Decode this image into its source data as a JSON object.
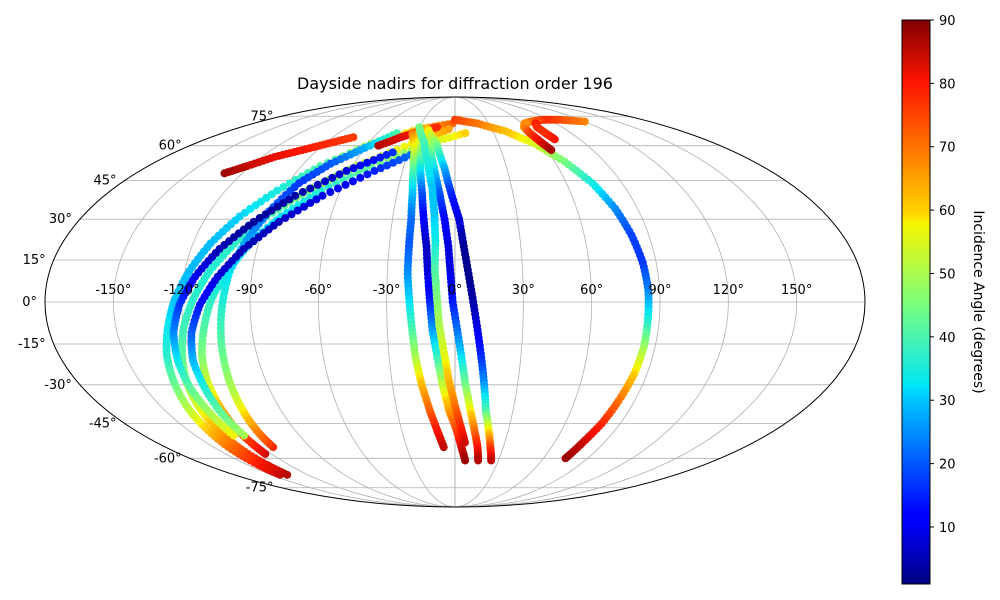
{
  "chart_data": {
    "type": "scatter",
    "title": "Dayside nadirs for diffraction order 196",
    "projection": "mollweide",
    "grid": true,
    "longitude_ticks": [
      "-150°",
      "-120°",
      "-90°",
      "-60°",
      "-30°",
      "0°",
      "30°",
      "60°",
      "90°",
      "120°",
      "150°"
    ],
    "longitude_values": [
      -150,
      -120,
      -90,
      -60,
      -30,
      0,
      30,
      60,
      90,
      120,
      150
    ],
    "latitude_ticks": [
      "75°",
      "60°",
      "45°",
      "30°",
      "15°",
      "0°",
      "-15°",
      "-30°",
      "-45°",
      "-60°",
      "-75°"
    ],
    "latitude_values": [
      75,
      60,
      45,
      30,
      15,
      0,
      -15,
      -30,
      -45,
      -60,
      -75
    ],
    "colorbar": {
      "label": "Incidence Angle (degrees)",
      "colormap": "jet",
      "range": [
        1,
        90
      ],
      "ticks": [
        "10",
        "20",
        "30",
        "40",
        "50",
        "60",
        "70",
        "80",
        "90"
      ],
      "tick_values": [
        10,
        20,
        30,
        40,
        50,
        60,
        70,
        80,
        90
      ]
    },
    "series": [
      {
        "points": [
          [
            -143,
            -68,
            85
          ],
          [
            -142,
            -63,
            80
          ],
          [
            -141,
            -56,
            72
          ],
          [
            -139,
            -48,
            62
          ],
          [
            -137,
            -39,
            52
          ],
          [
            -134,
            -29,
            43
          ],
          [
            -131,
            -19,
            37
          ],
          [
            -127,
            -9,
            33
          ],
          [
            -123,
            1,
            30
          ],
          [
            -118,
            11,
            29
          ],
          [
            -112,
            21,
            29
          ],
          [
            -104,
            31,
            31
          ],
          [
            -93,
            41,
            35
          ],
          [
            -79,
            51,
            40
          ],
          [
            -58,
            61,
            50
          ],
          [
            -30,
            68,
            62
          ],
          [
            -2,
            71,
            72
          ]
        ]
      },
      {
        "points": [
          [
            -137,
            -68,
            86
          ],
          [
            -136,
            -63,
            82
          ],
          [
            -135,
            -56,
            74
          ],
          [
            -133,
            -48,
            65
          ],
          [
            -131,
            -39,
            56
          ],
          [
            -128,
            -29,
            48
          ],
          [
            -124,
            -19,
            42
          ],
          [
            -120,
            -9,
            39
          ],
          [
            -115,
            1,
            37
          ],
          [
            -109,
            11,
            36
          ],
          [
            -101,
            21,
            37
          ],
          [
            -91,
            31,
            40
          ],
          [
            -77,
            41,
            45
          ],
          [
            -58,
            51,
            51
          ],
          [
            -30,
            61,
            58
          ],
          [
            -5,
            68,
            65
          ]
        ]
      },
      {
        "points": [
          [
            -124,
            -58,
            84
          ],
          [
            -123,
            -53,
            78
          ],
          [
            -122,
            -46,
            71
          ],
          [
            -120,
            -38,
            62
          ],
          [
            -118,
            -29,
            54
          ],
          [
            -115,
            -19,
            46
          ],
          [
            -111,
            -9,
            41
          ],
          [
            -107,
            1,
            37
          ],
          [
            -101,
            11,
            33
          ],
          [
            -94,
            21,
            31
          ],
          [
            -84,
            31,
            32
          ],
          [
            -70,
            41,
            36
          ],
          [
            -49,
            51,
            43
          ],
          [
            -20,
            61,
            52
          ],
          [
            8,
            66,
            60
          ]
        ]
      },
      {
        "points": [
          [
            -113,
            -55,
            78
          ],
          [
            -112,
            -49,
            70
          ],
          [
            -110,
            -41,
            60
          ],
          [
            -108,
            -32,
            51
          ],
          [
            -106,
            -22,
            45
          ],
          [
            -104,
            -11,
            40
          ],
          [
            -102,
            0,
            36
          ],
          [
            -100,
            11,
            32
          ],
          [
            -96,
            22,
            27
          ],
          [
            -91,
            33,
            21
          ],
          [
            -84,
            44,
            17
          ],
          [
            -74,
            52,
            20
          ],
          [
            -60,
            59,
            28
          ],
          [
            -45,
            66,
            40
          ]
        ]
      },
      {
        "points": [
          [
            -128,
            -50,
            58
          ],
          [
            -128,
            -41,
            50
          ],
          [
            -128,
            -31,
            42
          ],
          [
            -127,
            -21,
            34
          ],
          [
            -125,
            -11,
            25
          ],
          [
            -121,
            -1,
            17
          ],
          [
            -115,
            9,
            10
          ],
          [
            -107,
            19,
            5
          ],
          [
            -96,
            29,
            3
          ],
          [
            -82,
            39,
            4
          ],
          [
            -62,
            49,
            8
          ],
          [
            -40,
            57,
            16
          ]
        ]
      },
      {
        "points": [
          [
            -122,
            -50,
            50
          ],
          [
            -122,
            -41,
            43
          ],
          [
            -121,
            -31,
            36
          ],
          [
            -120,
            -21,
            29
          ],
          [
            -117,
            -11,
            21
          ],
          [
            -112,
            -1,
            14
          ],
          [
            -105,
            9,
            8
          ],
          [
            -96,
            19,
            5
          ],
          [
            -84,
            29,
            6
          ],
          [
            -68,
            39,
            9
          ],
          [
            -46,
            49,
            15
          ],
          [
            -25,
            57,
            23
          ]
        ]
      },
      {
        "points": [
          [
            -52,
            60,
            86
          ],
          [
            -40,
            64,
            83
          ],
          [
            -28,
            67,
            80
          ],
          [
            -15,
            69,
            78
          ]
        ]
      },
      {
        "points": [
          [
            -130,
            48,
            88
          ],
          [
            -122,
            51,
            85
          ],
          [
            -112,
            55,
            82
          ],
          [
            -100,
            58,
            80
          ],
          [
            -88,
            61,
            78
          ],
          [
            -75,
            64,
            76
          ]
        ]
      },
      {
        "points": [
          [
            -33,
            66,
            70
          ],
          [
            -27,
            60,
            58
          ],
          [
            -24,
            50,
            42
          ],
          [
            -22,
            40,
            30
          ],
          [
            -21,
            30,
            22
          ],
          [
            -21,
            20,
            20
          ],
          [
            -21,
            10,
            25
          ],
          [
            -20,
            0,
            32
          ],
          [
            -19,
            -10,
            40
          ],
          [
            -18,
            -20,
            50
          ],
          [
            -16,
            -30,
            62
          ],
          [
            -13,
            -40,
            72
          ],
          [
            -10,
            -48,
            80
          ],
          [
            -7,
            -55,
            85
          ]
        ]
      },
      {
        "points": [
          [
            -29,
            66,
            68
          ],
          [
            -23,
            60,
            52
          ],
          [
            -20,
            50,
            34
          ],
          [
            -17,
            40,
            20
          ],
          [
            -15,
            30,
            11
          ],
          [
            -13,
            20,
            6
          ],
          [
            -12,
            10,
            8
          ],
          [
            -11,
            0,
            15
          ],
          [
            -10,
            -10,
            26
          ],
          [
            -8,
            -20,
            38
          ],
          [
            -6,
            -30,
            52
          ],
          [
            -3,
            -40,
            65
          ],
          [
            1,
            -48,
            75
          ],
          [
            4,
            -55,
            83
          ],
          [
            7,
            -61,
            88
          ]
        ]
      },
      {
        "points": [
          [
            -26,
            68,
            65
          ],
          [
            -17,
            60,
            48
          ],
          [
            -12,
            50,
            32
          ],
          [
            -8,
            40,
            20
          ],
          [
            -5,
            30,
            12
          ],
          [
            -3,
            20,
            8
          ],
          [
            -2,
            10,
            9
          ],
          [
            -1,
            0,
            14
          ],
          [
            1,
            -10,
            22
          ],
          [
            3,
            -20,
            32
          ],
          [
            5,
            -30,
            44
          ],
          [
            8,
            -40,
            58
          ],
          [
            11,
            -48,
            70
          ],
          [
            14,
            -55,
            80
          ],
          [
            16,
            -61,
            86
          ]
        ]
      },
      {
        "points": [
          [
            -22,
            68,
            60
          ],
          [
            -12,
            60,
            44
          ],
          [
            -6,
            50,
            28
          ],
          [
            -2,
            40,
            16
          ],
          [
            2,
            30,
            8
          ],
          [
            4,
            20,
            3
          ],
          [
            6,
            10,
            2
          ],
          [
            8,
            0,
            4
          ],
          [
            10,
            -10,
            9
          ],
          [
            12,
            -20,
            16
          ],
          [
            14,
            -30,
            26
          ],
          [
            16,
            -40,
            40
          ],
          [
            19,
            -48,
            58
          ],
          [
            22,
            -55,
            75
          ],
          [
            25,
            -61,
            85
          ]
        ]
      },
      {
        "points": [
          [
            -30,
            69,
            45
          ],
          [
            -22,
            62,
            40
          ],
          [
            -16,
            52,
            35
          ],
          [
            -12,
            42,
            30
          ],
          [
            -10,
            32,
            30
          ],
          [
            -9,
            22,
            34
          ],
          [
            -9,
            12,
            40
          ],
          [
            -8,
            2,
            45
          ],
          [
            -7,
            -8,
            50
          ],
          [
            -5,
            -18,
            55
          ],
          [
            -3,
            -28,
            62
          ],
          [
            0,
            -38,
            70
          ],
          [
            3,
            -46,
            78
          ],
          [
            6,
            -53,
            84
          ]
        ]
      },
      {
        "points": [
          [
            0,
            73,
            76
          ],
          [
            20,
            71,
            70
          ],
          [
            40,
            67,
            62
          ],
          [
            55,
            61,
            55
          ],
          [
            66,
            53,
            45
          ],
          [
            74,
            44,
            35
          ],
          [
            79,
            34,
            25
          ],
          [
            82,
            24,
            18
          ],
          [
            84,
            14,
            17
          ],
          [
            85,
            4,
            24
          ],
          [
            85,
            -6,
            35
          ],
          [
            85,
            -16,
            48
          ],
          [
            84,
            -26,
            60
          ],
          [
            82,
            -36,
            70
          ],
          [
            80,
            -45,
            78
          ],
          [
            77,
            -53,
            84
          ],
          [
            75,
            -60,
            88
          ]
        ]
      },
      {
        "points": [
          [
            120,
            72,
            68
          ],
          [
            100,
            73,
            74
          ],
          [
            85,
            73,
            78
          ],
          [
            70,
            72,
            72
          ],
          [
            62,
            71,
            67
          ],
          [
            58,
            69,
            67
          ],
          [
            58,
            66,
            75
          ],
          [
            60,
            62,
            82
          ],
          [
            63,
            58,
            87
          ]
        ]
      },
      {
        "points": [
          [
            72,
            71,
            80
          ],
          [
            69,
            69,
            78
          ],
          [
            70,
            66,
            77
          ],
          [
            72,
            63,
            80
          ]
        ]
      }
    ]
  }
}
